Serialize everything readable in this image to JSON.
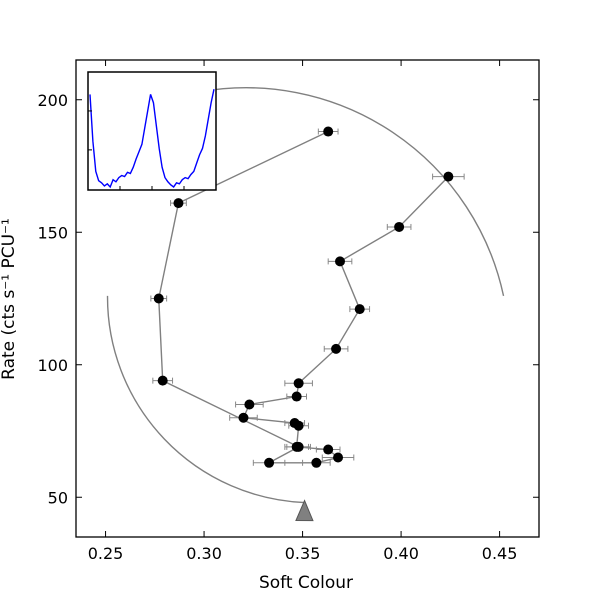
{
  "chart_data": {
    "type": "scatter",
    "xlabel": "Soft Colour",
    "ylabel": "Rate (cts s⁻¹ PCU⁻¹",
    "xlim": [
      0.235,
      0.47
    ],
    "ylim": [
      35,
      215
    ],
    "xticks": [
      0.25,
      0.3,
      0.35,
      0.4,
      0.45
    ],
    "xtick_labels": [
      "0.25",
      "0.30",
      "0.35",
      "0.40",
      "0.45"
    ],
    "yticks": [
      50,
      100,
      150,
      200
    ],
    "ytick_labels": [
      "50",
      "100",
      "150",
      "200"
    ],
    "grid": false,
    "series": [
      {
        "marker": "filled circle",
        "line_color": "#808080",
        "marker_color": "#000000",
        "points": [
          {
            "x": 0.424,
            "y": 171,
            "xerr": 0.008
          },
          {
            "x": 0.399,
            "y": 152,
            "xerr": 0.006
          },
          {
            "x": 0.369,
            "y": 139,
            "xerr": 0.006
          },
          {
            "x": 0.379,
            "y": 121,
            "xerr": 0.005
          },
          {
            "x": 0.367,
            "y": 106,
            "xerr": 0.006
          },
          {
            "x": 0.348,
            "y": 93,
            "xerr": 0.007
          },
          {
            "x": 0.347,
            "y": 88,
            "xerr": 0.005
          },
          {
            "x": 0.323,
            "y": 85,
            "xerr": 0.007
          },
          {
            "x": 0.32,
            "y": 80,
            "xerr": 0.007
          },
          {
            "x": 0.346,
            "y": 78,
            "xerr": 0.005
          },
          {
            "x": 0.348,
            "y": 77,
            "xerr": 0.005
          },
          {
            "x": 0.347,
            "y": 69,
            "xerr": 0.006
          },
          {
            "x": 0.363,
            "y": 68,
            "xerr": 0.006
          },
          {
            "x": 0.368,
            "y": 65,
            "xerr": 0.008
          },
          {
            "x": 0.357,
            "y": 63,
            "xerr": 0.007
          },
          {
            "x": 0.333,
            "y": 63,
            "xerr": 0.008
          },
          {
            "x": 0.348,
            "y": 69,
            "xerr": 0.006
          },
          {
            "x": 0.279,
            "y": 94,
            "xerr": 0.005
          },
          {
            "x": 0.277,
            "y": 125,
            "xerr": 0.004
          },
          {
            "x": 0.287,
            "y": 161,
            "xerr": 0.004
          },
          {
            "x": 0.363,
            "y": 188,
            "xerr": 0.005
          }
        ]
      }
    ],
    "arrows": [
      {
        "name": "arrow-top",
        "direction": "counter-clockwise",
        "from": {
          "x": 0.452,
          "y": 126
        },
        "to": {
          "x": 0.298,
          "y": 203
        },
        "color": "#808080"
      },
      {
        "name": "arrow-bottom",
        "direction": "counter-clockwise",
        "from": {
          "x": 0.251,
          "y": 126
        },
        "to": {
          "x": 0.351,
          "y": 48
        },
        "color": "#808080"
      }
    ],
    "inset": {
      "line_color": "#0000ff",
      "tick_labels": false,
      "values": [
        0.9,
        0.45,
        0.16,
        0.07,
        0.05,
        0.02,
        0.04,
        0.01,
        0.08,
        0.06,
        0.1,
        0.12,
        0.11,
        0.15,
        0.14,
        0.2,
        0.28,
        0.35,
        0.42,
        0.58,
        0.74,
        0.9,
        0.82,
        0.6,
        0.38,
        0.2,
        0.1,
        0.06,
        0.03,
        0.01,
        0.05,
        0.04,
        0.08,
        0.1,
        0.09,
        0.13,
        0.16,
        0.24,
        0.32,
        0.38,
        0.5,
        0.66,
        0.82,
        0.95
      ]
    }
  }
}
